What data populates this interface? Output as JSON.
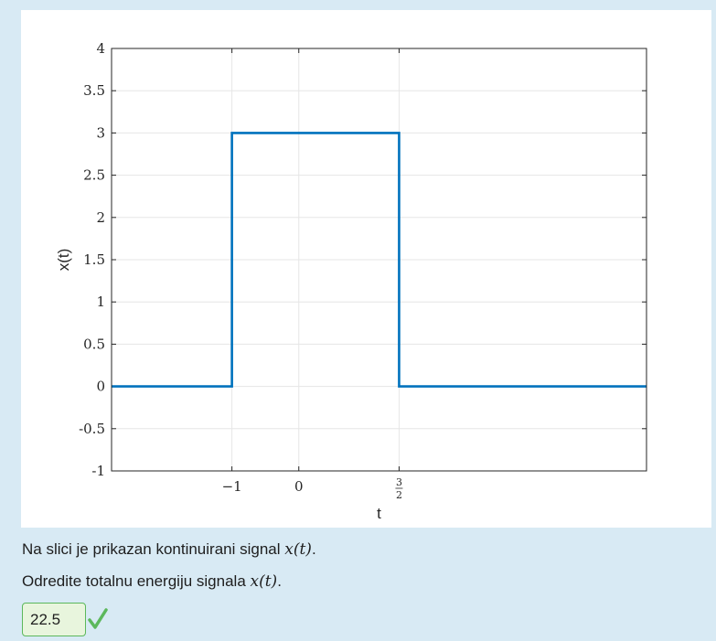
{
  "chart_data": {
    "type": "line",
    "ylabel": "x(t)",
    "xlabel": "t",
    "xlim": [
      -2.8,
      5.2
    ],
    "ylim": [
      -1,
      4
    ],
    "yticks": [
      -1,
      -0.5,
      0,
      0.5,
      1,
      1.5,
      2,
      2.5,
      3,
      3.5,
      4
    ],
    "ytick_labels": [
      "-1",
      "-0.5",
      "0",
      "0.5",
      "1",
      "1.5",
      "2",
      "2.5",
      "3",
      "3.5",
      "4"
    ],
    "xticks": [
      -1,
      0,
      1.5
    ],
    "xtick_labels": [
      "−1",
      "0",
      "3/2"
    ],
    "grid": true,
    "color": "#0072bd",
    "series": [
      {
        "x": [
          -2.8,
          -1,
          -1,
          1.5,
          1.5,
          5.2
        ],
        "y": [
          0,
          0,
          3,
          3,
          0,
          0
        ]
      }
    ]
  },
  "question": {
    "line1_text": "Na slici je prikazan kontinuirani signal ",
    "line1_math": "x(t)",
    "line1_end": ".",
    "line2_text": "Odredite totalnu energiju signala ",
    "line2_math": "x(t)",
    "line2_end": "."
  },
  "answer": {
    "value": "22.5",
    "status": "correct",
    "icon": "checkmark-icon",
    "color": "#5cb85c"
  }
}
